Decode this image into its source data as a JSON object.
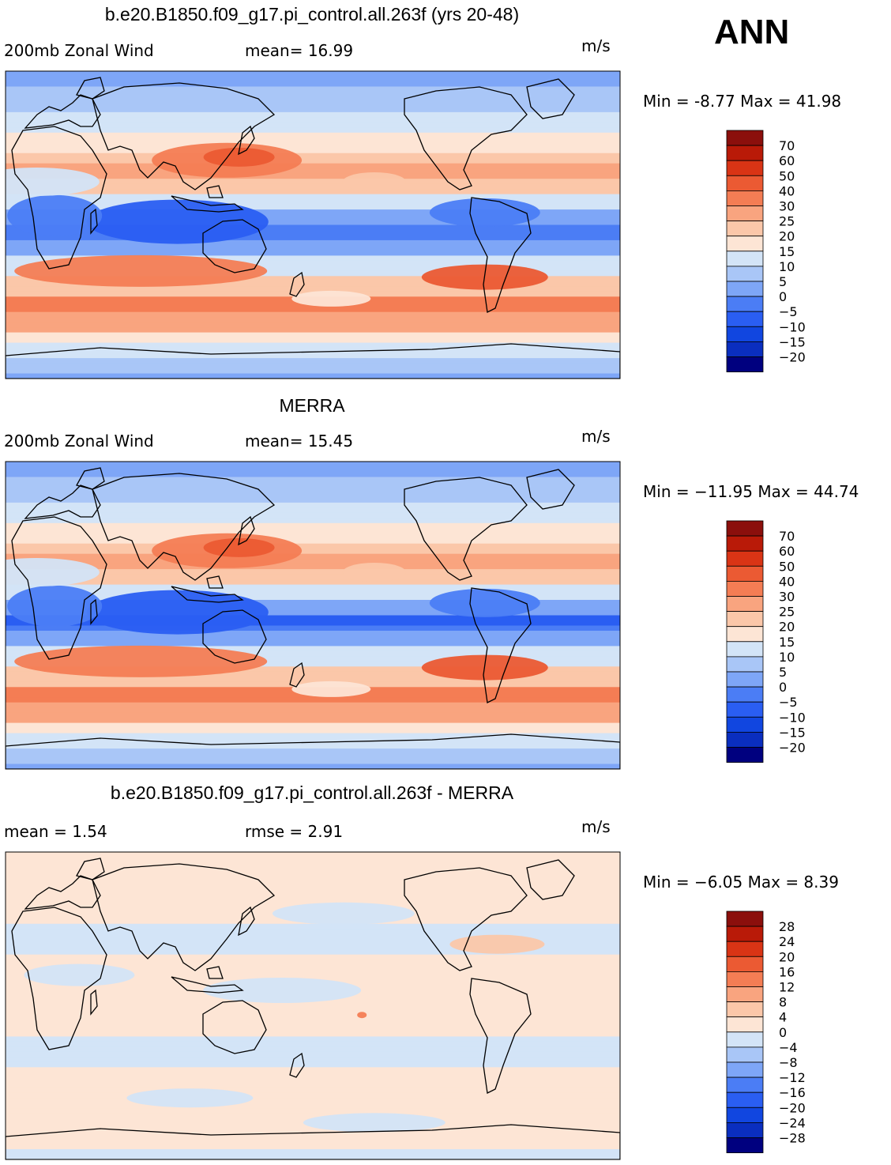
{
  "season": "ANN",
  "colormap_main": [
    "#00007f",
    "#0a2ebf",
    "#1146e0",
    "#2a5ef2",
    "#4b7df5",
    "#7ea6f7",
    "#a9c6f7",
    "#d3e4f7",
    "#fde5d5",
    "#fbc7a9",
    "#f9a47f",
    "#f47d54",
    "#eb5a33",
    "#d93415",
    "#b91a08",
    "#8b0f0c"
  ],
  "colormap_diff": [
    "#00007f",
    "#0a2ebf",
    "#1146e0",
    "#2a5ef2",
    "#4b7df5",
    "#7ea6f7",
    "#a9c6f7",
    "#d3e4f7",
    "#fde5d5",
    "#fbc7a9",
    "#f9a47f",
    "#f47d54",
    "#eb5a33",
    "#d93415",
    "#b91a08",
    "#8b0f0c"
  ],
  "chart_data": [
    {
      "type": "heatmap",
      "title": "b.e20.B1850.f09_g17.pi_control.all.263f (yrs 20-48)",
      "left_label": "200mb Zonal Wind",
      "center_label": "mean=   16.99",
      "units": "m/s",
      "min_max": "Min =   -8.77 Max =   41.98",
      "levels": [
        "70",
        "60",
        "50",
        "40",
        "30",
        "25",
        "20",
        "15",
        "10",
        "5",
        "0",
        "−5",
        "−10",
        "−15",
        "−20"
      ],
      "field": "zonal_wind_model"
    },
    {
      "type": "heatmap",
      "title": "MERRA",
      "left_label": "200mb Zonal Wind",
      "center_label": "mean=   15.45",
      "units": "m/s",
      "min_max": "Min = −11.95 Max =   44.74",
      "levels": [
        "70",
        "60",
        "50",
        "40",
        "30",
        "25",
        "20",
        "15",
        "10",
        "5",
        "0",
        "−5",
        "−10",
        "−15",
        "−20"
      ],
      "field": "zonal_wind_obs"
    },
    {
      "type": "heatmap",
      "title": "b.e20.B1850.f09_g17.pi_control.all.263f - MERRA",
      "left_label": "mean =     1.54",
      "center_label": "rmse =     2.91",
      "units": "m/s",
      "min_max": "Min =   −6.05 Max =     8.39",
      "levels": [
        "28",
        "24",
        "20",
        "16",
        "12",
        "8",
        "4",
        "0",
        "−4",
        "−8",
        "−12",
        "−16",
        "−20",
        "−24",
        "−28"
      ],
      "field": "difference"
    }
  ]
}
